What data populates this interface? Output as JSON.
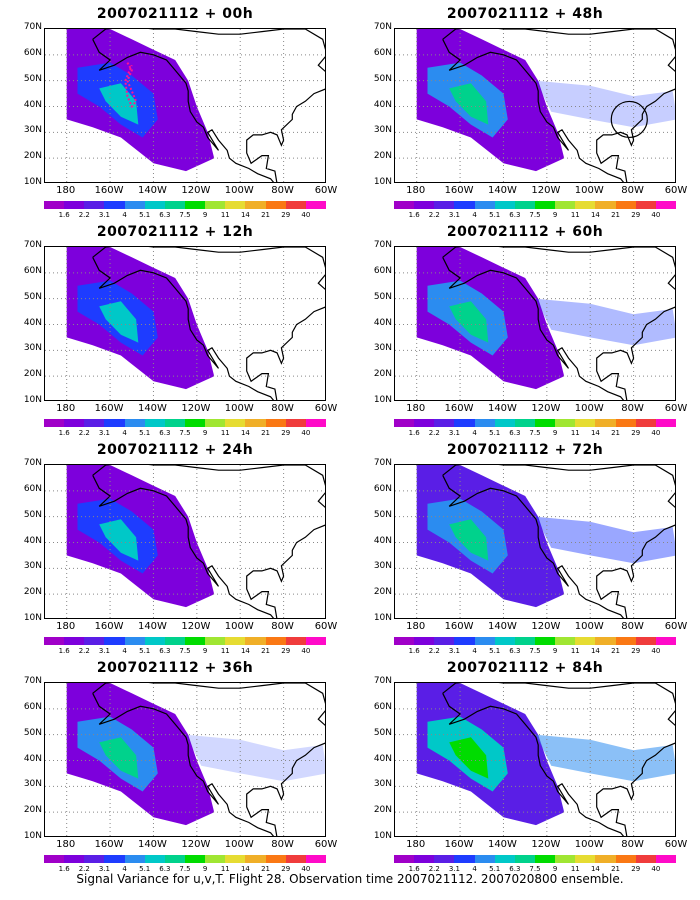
{
  "footer": "Signal Variance for u,v,T. Flight 28. Observation time 2007021112. 2007020800 ensemble.",
  "y_ticks": [
    "70N",
    "60N",
    "50N",
    "40N",
    "30N",
    "20N",
    "10N"
  ],
  "x_ticks": [
    "180",
    "160W",
    "140W",
    "120W",
    "100W",
    "80W",
    "60W"
  ],
  "colorbar": {
    "labels": [
      "1.6",
      "2.2",
      "3.1",
      "4",
      "5.1",
      "6.3",
      "7.5",
      "9",
      "11",
      "14",
      "21",
      "29",
      "40"
    ],
    "colors": [
      "#a000c8",
      "#7d00dc",
      "#5a1ee6",
      "#1e3cff",
      "#2b8cf0",
      "#00c8c8",
      "#00d28c",
      "#00dc00",
      "#a0e632",
      "#e6dc32",
      "#f0af28",
      "#fa7814",
      "#f03c3c",
      "#ff0ac8"
    ]
  },
  "panels": [
    {
      "title": "2007021112 + 00h",
      "level": 0.3,
      "track": true,
      "circle": false
    },
    {
      "title": "2007021112 + 48h",
      "level": 0.55,
      "track": false,
      "circle": true
    },
    {
      "title": "2007021112 + 12h",
      "level": 0.35,
      "track": false,
      "circle": false
    },
    {
      "title": "2007021112 + 60h",
      "level": 0.65,
      "track": false,
      "circle": false
    },
    {
      "title": "2007021112 + 24h",
      "level": 0.45,
      "track": false,
      "circle": false
    },
    {
      "title": "2007021112 + 72h",
      "level": 0.75,
      "track": false,
      "circle": false
    },
    {
      "title": "2007021112 + 36h",
      "level": 0.5,
      "track": false,
      "circle": false
    },
    {
      "title": "2007021112 + 84h",
      "level": 0.85,
      "track": false,
      "circle": false
    }
  ]
}
